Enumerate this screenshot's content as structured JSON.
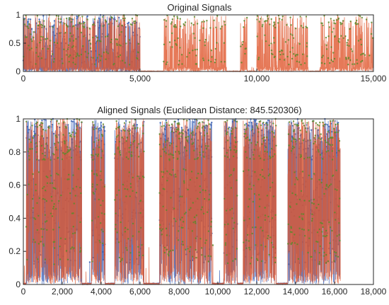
{
  "chart_data": [
    {
      "type": "line",
      "title": "Original Signals",
      "xlim": [
        0,
        15000
      ],
      "ylim": [
        0,
        1
      ],
      "xticks": [
        0,
        5000,
        10000,
        15000
      ],
      "xtick_labels": [
        "0",
        "5,000",
        "10,000",
        "15,000"
      ],
      "yticks": [
        0,
        0.5,
        1
      ],
      "ytick_labels": [
        "0",
        "0.5",
        "1"
      ],
      "grid": false,
      "series": [
        {
          "color": "#4a6fbf",
          "marker_color": "#3a5fb0",
          "extent": [
            0,
            5000
          ],
          "bursts": [
            [
              0,
              5000
            ]
          ]
        },
        {
          "color": "#e0572e",
          "marker_color": "#5a8a2a",
          "extent": [
            0,
            15000
          ],
          "bursts": [
            [
              0,
              5000
            ],
            [
              6000,
              8700
            ],
            [
              9300,
              9600
            ],
            [
              10000,
              12200
            ],
            [
              12700,
              15000
            ]
          ]
        }
      ]
    },
    {
      "type": "line",
      "title": "Aligned Signals (Euclidean Distance: 845.520306)",
      "xlim": [
        0,
        18000
      ],
      "ylim": [
        0,
        1
      ],
      "xticks": [
        0,
        2000,
        4000,
        6000,
        8000,
        10000,
        12000,
        14000,
        16000,
        18000
      ],
      "xtick_labels": [
        "0",
        "2,000",
        "4,000",
        "6,000",
        "8,000",
        "10,000",
        "12,000",
        "14,000",
        "16,000",
        "18,000"
      ],
      "yticks": [
        0,
        0.2,
        0.4,
        0.6,
        0.8,
        1
      ],
      "ytick_labels": [
        "0",
        "0.2",
        "0.4",
        "0.6",
        "0.8",
        "1"
      ],
      "grid": false,
      "series": [
        {
          "color": "#4a6fbf",
          "marker_color": "#3a5fb0",
          "extent": [
            0,
            16300
          ],
          "bursts": [
            [
              150,
              3000
            ],
            [
              3500,
              4200
            ],
            [
              4700,
              6200
            ],
            [
              7000,
              9700
            ],
            [
              10300,
              11000
            ],
            [
              11300,
              13000
            ],
            [
              13600,
              16300
            ]
          ]
        },
        {
          "color": "#e0572e",
          "marker_color": "#5a8a2a",
          "extent": [
            0,
            16300
          ],
          "bursts": [
            [
              150,
              3000
            ],
            [
              3500,
              4200
            ],
            [
              4700,
              6200
            ],
            [
              7000,
              9700
            ],
            [
              10300,
              11000
            ],
            [
              11300,
              13000
            ],
            [
              13600,
              16300
            ]
          ]
        }
      ]
    }
  ]
}
